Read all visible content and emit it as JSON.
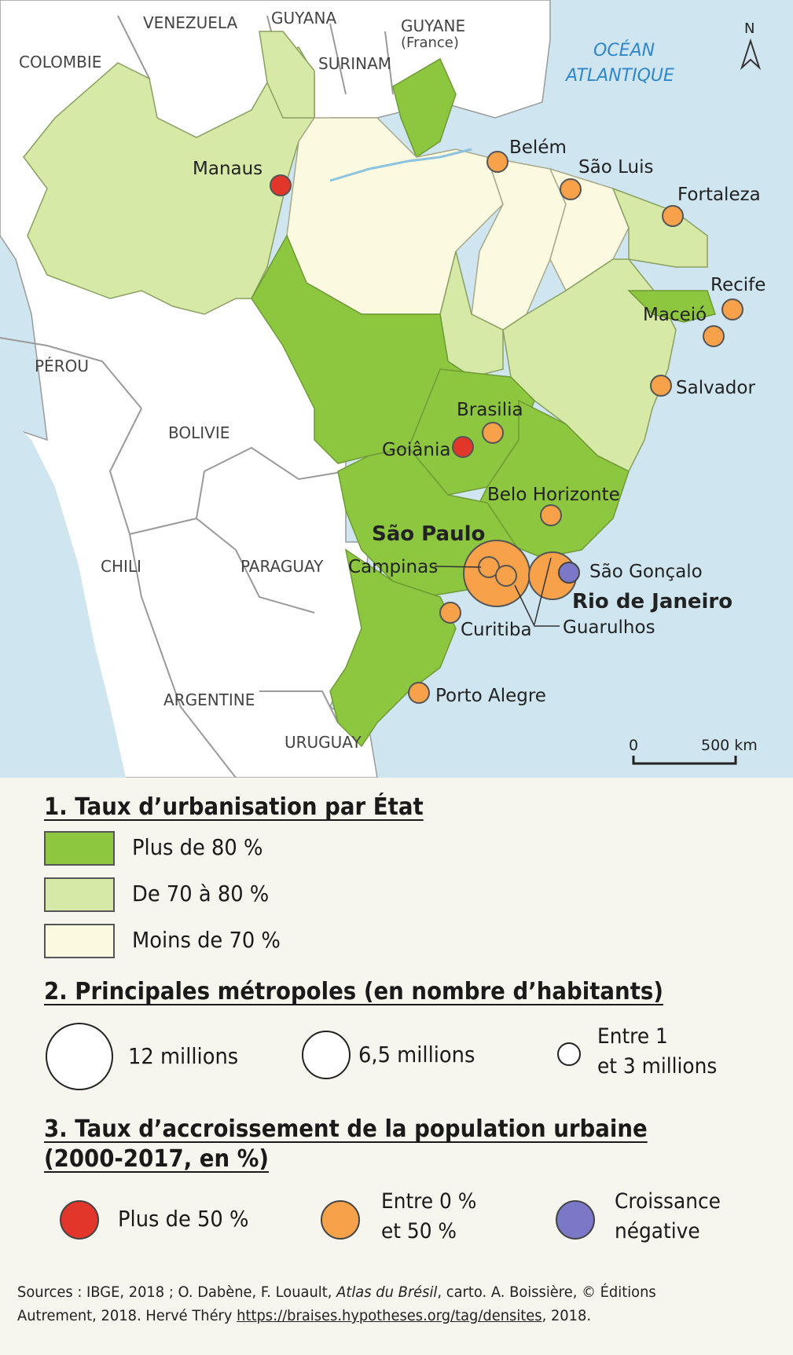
{
  "map": {
    "ocean_label_line1": "OCÉAN",
    "ocean_label_line2": "ATLANTIQUE",
    "north_label": "N",
    "scale": {
      "start": "0",
      "end": "500 km"
    },
    "countries": {
      "venezuela": "VENEZUELA",
      "guyana": "GUYANA",
      "guyane": "GUYANE",
      "guyane_sub": "(France)",
      "surinam": "SURINAM",
      "colombie": "COLOMBIE",
      "perou": "PÉROU",
      "bolivie": "BOLIVIE",
      "chili": "CHILI",
      "paraguay": "PARAGUAY",
      "argentine": "ARGENTINE",
      "uruguay": "URUGUAY"
    },
    "cities": [
      {
        "name": "Manaus",
        "growth": "plus-50"
      },
      {
        "name": "Belém",
        "growth": "0-50"
      },
      {
        "name": "São Luis",
        "growth": "0-50"
      },
      {
        "name": "Fortaleza",
        "growth": "0-50"
      },
      {
        "name": "Recife",
        "growth": "0-50"
      },
      {
        "name": "Maceió",
        "growth": "0-50"
      },
      {
        "name": "Salvador",
        "growth": "0-50"
      },
      {
        "name": "Brasilia",
        "growth": "0-50"
      },
      {
        "name": "Goiânia",
        "growth": "plus-50"
      },
      {
        "name": "Belo Horizonte",
        "growth": "0-50"
      },
      {
        "name": "São Paulo",
        "growth": "0-50"
      },
      {
        "name": "Campinas",
        "growth": "0-50"
      },
      {
        "name": "Guarulhos",
        "growth": "0-50"
      },
      {
        "name": "Rio de Janeiro",
        "growth": "0-50"
      },
      {
        "name": "São Gonçalo",
        "growth": "negative"
      },
      {
        "name": "Curitiba",
        "growth": "0-50"
      },
      {
        "name": "Porto Alegre",
        "growth": "0-50"
      }
    ]
  },
  "colors": {
    "ocean": "#cfe6f0",
    "over_80": "#8dc63f",
    "between_70_80": "#d6e9a6",
    "under_70": "#fbfae0",
    "neighbor_land": "#ffffff",
    "growth_over_50": "#e2362a",
    "growth_0_50": "#f7a24b",
    "growth_negative": "#7b78c8",
    "ocean_text": "#2f86c8"
  },
  "legend": {
    "section1": {
      "title": "1. Taux d’urbanisation par État",
      "items": [
        "Plus de 80 %",
        "De 70 à 80 %",
        "Moins de 70 %"
      ]
    },
    "section2": {
      "title": "2. Principales métropoles (en nombre d’habitants)",
      "items": [
        "12 millions",
        "6,5 millions",
        "Entre 1",
        "et 3 millions"
      ]
    },
    "section3": {
      "title_line1": "3. Taux d’accroissement de la population urbaine",
      "title_line2": "(2000-2017, en %)",
      "items": [
        "Plus de 50 %",
        "Entre 0 %",
        "et 50 %",
        "Croissance",
        "négative"
      ]
    }
  },
  "sources": {
    "part1": "Sources : IBGE, 2018 ; O. Dabène, F. Louault, ",
    "atlas": "Atlas du Brésil",
    "part2": ", carto. A. Boissière, © Éditions Autrement, 2018. Hervé Théry ",
    "link": "https://braises.hypotheses.org/tag/densites",
    "part3": ", 2018."
  }
}
